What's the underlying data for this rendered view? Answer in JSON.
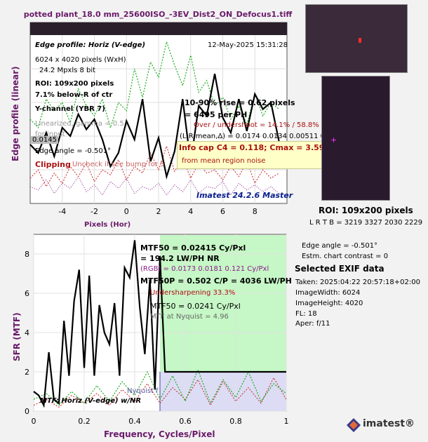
{
  "window": {
    "title": "potted plant_18.0 mm_25600ISO_-3EV_Dist2_ON_Defocus1.tiff"
  },
  "edge_panel": {
    "heading": "Edge profile: Horiz (V-edge)",
    "date": "12-May-2025 15:31:28",
    "size_line": "6024 x 4020 pixels (WxH)",
    "mp_line": "24.2 Mpxls   8 bit",
    "roi_line": "ROI:  109x200 pixels",
    "below_line": "7.1% below-R of ctr",
    "channel_line": "Y-channel  (YBR 7)",
    "linearized_line": "Linearized, gamma = 0.5",
    "input_line": "for input",
    "level_value": "0.0145",
    "edge_angle_line": "Edge angle = -0.501°",
    "clipping_label": "Clipping",
    "clipping_note": "Uncheck if see bump for 5",
    "rise_line": "10-90% rise = 0.62 pixels",
    "ph_line": "= 6495 per PH",
    "overshoot_line": "Over / undershoot = 14.1% / 58.8%",
    "lr_line": "(L,R mean,Δ) = 0.0174  0.0134  0.00511  0",
    "infocap_line": "Info cap C4 = 0.118;  Cmax = 3.59 b/p;",
    "noise_line": "from mean region noise",
    "version": "Imatest 24.2.6 Master",
    "ylabel": "Edge profile (linear)",
    "xlabel": "Pixels (Hor)",
    "xticks": [
      "-4",
      "-2",
      "0",
      "2",
      "4",
      "6",
      "8"
    ]
  },
  "mtf_panel": {
    "mtf50_line": "MTF50 = 0.02415 Cy/Pxl",
    "lwph_line": "= 194.2 LW/PH  NR",
    "rgb_line": "(RGB) = 0.0173  0.0181  0.121 Cy/Pxl",
    "mtf50p_line": "MTF50P = 0.502 C/P = 4036 LW/PH",
    "undersharp_line": "Undersharpening 33.3%",
    "mtf50b_line": "MTF50 = 0.0241 Cy/Pxl",
    "nyquist_line": "MTF at Nyquist = 4.96",
    "nyquist_label": "Nyquist f",
    "legend": "MTF: Horiz (V-edge) w/NR",
    "ylabel": "SFR (MTF)",
    "xlabel": "Frequency, Cycles/Pixel",
    "xticks": [
      "0",
      "0.2",
      "0.4",
      "0.6",
      "0.8",
      "1"
    ],
    "yticks": [
      "0",
      "2",
      "4",
      "6",
      "8"
    ]
  },
  "side": {
    "roi_title": "ROI:  109x200 pixels",
    "roi_coords": "L R  T B = 3219 3327  2030 2229",
    "edge_angle": "Edge angle = -0.501°",
    "contrast": "Estm. chart contrast = 0",
    "exif_title": "Selected EXIF data",
    "exif": [
      "Taken: 2025:04:22 20:57:18+02:00",
      "ImageWidth:  6024",
      "ImageHeight:  4020",
      "FL:    18",
      "Aper:  f/11"
    ],
    "logo": "imatest®"
  },
  "colors": {
    "title": "#6a1a6a",
    "axis_label": "#6a1a6a",
    "black_curve": "#000000",
    "green_curve": "#1aaa1a",
    "red_curve": "#cc2222",
    "note_red": "#aa1111",
    "version_blue": "#0a1e8c",
    "shade_green": "#c6f7c6",
    "shade_blue": "#dcdcf5"
  },
  "chart_data": [
    {
      "type": "line",
      "title": "Edge profile: Horiz (V-edge)",
      "xlabel": "Pixels (Hor)",
      "ylabel": "Edge profile (linear)",
      "xlim": [
        -6,
        10
      ],
      "ylim": [
        0,
        1
      ],
      "series": [
        {
          "name": "Y",
          "color": "#000000",
          "x": [
            -6,
            -5.5,
            -5,
            -4.5,
            -4,
            -3.5,
            -3,
            -2.5,
            -2,
            -1.5,
            -1,
            -0.5,
            0,
            0.5,
            1,
            1.5,
            2,
            2.5,
            3,
            3.5,
            4,
            4.5,
            5,
            5.5,
            6,
            6.5,
            7,
            7.5,
            8,
            8.5,
            9,
            9.5
          ],
          "y": [
            0.35,
            0.3,
            0.42,
            0.28,
            0.45,
            0.4,
            0.53,
            0.44,
            0.5,
            0.38,
            0.22,
            0.3,
            0.49,
            0.38,
            0.62,
            0.25,
            0.39,
            0.16,
            0.31,
            0.62,
            0.24,
            0.58,
            0.52,
            0.77,
            0.51,
            0.42,
            0.62,
            0.43,
            0.65,
            0.56,
            0.6,
            0.37
          ]
        },
        {
          "name": "G",
          "color": "#1aaa1a",
          "x": [
            -6,
            -5.5,
            -5,
            -4.5,
            -4,
            -3.5,
            -3,
            -2.5,
            -2,
            -1.5,
            -1,
            -0.5,
            0,
            0.5,
            1,
            1.5,
            2,
            2.5,
            3,
            3.5,
            4,
            4.5,
            5,
            5.5,
            6,
            6.5,
            7,
            7.5,
            8,
            8.5,
            9,
            9.5
          ],
          "y": [
            0.5,
            0.45,
            0.62,
            0.55,
            0.6,
            0.48,
            0.68,
            0.58,
            0.52,
            0.62,
            0.45,
            0.6,
            0.55,
            0.8,
            0.63,
            0.84,
            0.75,
            0.96,
            0.82,
            0.7,
            0.88,
            0.66,
            0.73,
            0.58,
            0.63,
            0.5,
            0.58,
            0.47,
            0.65,
            0.52,
            0.6,
            0.56
          ]
        },
        {
          "name": "R",
          "color": "#cc2222",
          "x": [
            -6,
            -5.5,
            -5,
            -4.5,
            -4,
            -3.5,
            -3,
            -2.5,
            -2,
            -1.5,
            -1,
            -0.5,
            0,
            0.5,
            1,
            1.5,
            2,
            2.5,
            3,
            3.5,
            4,
            4.5,
            5,
            5.5,
            6,
            6.5,
            7,
            7.5,
            8,
            8.5,
            9,
            9.5
          ],
          "y": [
            0.15,
            0.2,
            0.1,
            0.18,
            0.12,
            0.22,
            0.16,
            0.24,
            0.13,
            0.2,
            0.17,
            0.26,
            0.14,
            0.22,
            0.18,
            0.3,
            0.2,
            0.34,
            0.19,
            0.27,
            0.15,
            0.24,
            0.18,
            0.2,
            0.14,
            0.22,
            0.16,
            0.25,
            0.12,
            0.2,
            0.15,
            0.18
          ]
        },
        {
          "name": "B",
          "color": "#8a1a8a",
          "x": [
            -6,
            -5.5,
            -5,
            -4.5,
            -4,
            -3.5,
            -3,
            -2.5,
            -2,
            -1.5,
            -1,
            -0.5,
            0,
            0.5,
            1,
            1.5,
            2,
            2.5,
            3,
            3.5,
            4,
            4.5,
            5,
            5.5,
            6,
            6.5,
            7,
            7.5,
            8,
            8.5,
            9,
            9.5
          ],
          "y": [
            0.1,
            0.08,
            0.14,
            0.06,
            0.12,
            0.09,
            0.16,
            0.07,
            0.11,
            0.05,
            0.13,
            0.09,
            0.15,
            0.06,
            0.1,
            0.08,
            0.12,
            0.05,
            0.11,
            0.07,
            0.14,
            0.06,
            0.1,
            0.09,
            0.13,
            0.05,
            0.12,
            0.08,
            0.11,
            0.07,
            0.1,
            0.06
          ]
        }
      ]
    },
    {
      "type": "line",
      "title": "MTF: Horiz (V-edge) w/NR",
      "xlabel": "Frequency, Cycles/Pixel",
      "ylabel": "SFR (MTF)",
      "xlim": [
        0,
        1
      ],
      "ylim": [
        0,
        9
      ],
      "series": [
        {
          "name": "Y",
          "color": "#000000",
          "x": [
            0,
            0.02,
            0.04,
            0.06,
            0.08,
            0.1,
            0.12,
            0.14,
            0.16,
            0.18,
            0.2,
            0.22,
            0.24,
            0.26,
            0.28,
            0.3,
            0.32,
            0.34,
            0.36,
            0.38,
            0.4,
            0.42,
            0.44,
            0.46,
            0.48,
            0.5,
            0.52,
            0.6,
            0.8,
            1.0
          ],
          "y": [
            1.0,
            0.8,
            0.3,
            3.0,
            0.6,
            0.4,
            4.6,
            1.8,
            5.6,
            7.2,
            2.2,
            6.9,
            1.8,
            5.4,
            4.0,
            3.4,
            5.5,
            1.8,
            7.3,
            6.8,
            8.7,
            5.3,
            2.9,
            6.7,
            1.1,
            7.9,
            2.0,
            2.0,
            2.0,
            2.0
          ]
        },
        {
          "name": "G",
          "color": "#1aaa1a",
          "x": [
            0,
            0.05,
            0.1,
            0.15,
            0.2,
            0.25,
            0.3,
            0.35,
            0.4,
            0.45,
            0.5,
            0.55,
            0.6,
            0.65,
            0.7,
            0.75,
            0.8,
            0.85,
            0.9,
            0.95,
            1.0
          ],
          "y": [
            0.6,
            0.9,
            0.3,
            1.0,
            0.4,
            1.3,
            0.5,
            1.5,
            0.8,
            2.0,
            0.6,
            1.8,
            0.5,
            2.1,
            0.4,
            1.6,
            0.7,
            2.0,
            0.5,
            1.4,
            0.9
          ]
        },
        {
          "name": "R",
          "color": "#cc2222",
          "x": [
            0,
            0.05,
            0.1,
            0.15,
            0.2,
            0.25,
            0.3,
            0.35,
            0.4,
            0.45,
            0.5,
            0.55,
            0.6,
            0.65,
            0.7,
            0.75,
            0.8,
            0.85,
            0.9,
            0.95,
            1.0
          ],
          "y": [
            0.3,
            0.6,
            0.2,
            0.8,
            0.4,
            0.9,
            0.3,
            1.1,
            0.5,
            1.4,
            0.4,
            1.2,
            0.6,
            1.6,
            0.3,
            1.5,
            0.5,
            1.2,
            0.4,
            1.7,
            0.6
          ]
        }
      ]
    }
  ]
}
